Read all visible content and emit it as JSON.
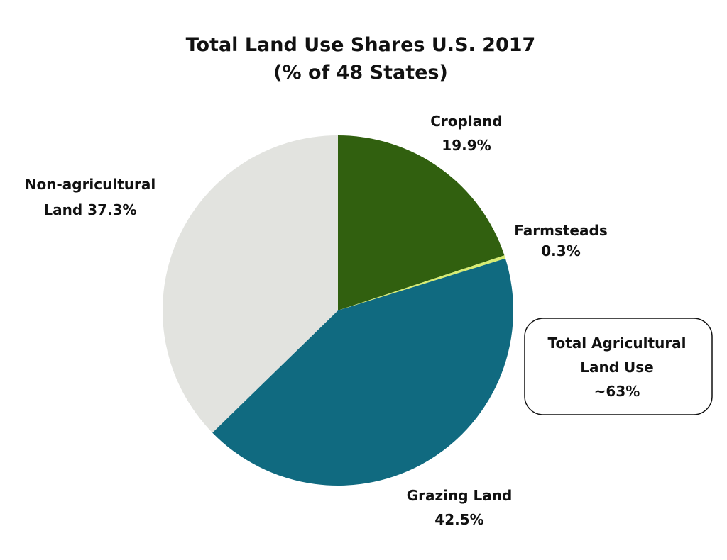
{
  "chart_data": {
    "type": "pie",
    "title": "Total Land Use Shares U.S. 2017",
    "subtitle": "(% of 48 States)",
    "slices": [
      {
        "label_lines": [
          "Cropland",
          "19.9%"
        ],
        "category": "Cropland",
        "value": 19.9,
        "color": "#31600f"
      },
      {
        "label_lines": [
          "Farmsteads",
          "0.3%"
        ],
        "category": "Farmsteads",
        "value": 0.3,
        "color": "#d7ec72"
      },
      {
        "label_lines": [
          "Grazing Land",
          "42.5%"
        ],
        "category": "Grazing Land",
        "value": 42.5,
        "color": "#106a80"
      },
      {
        "label_lines": [
          "Non-agricultural",
          "Land 37.3%"
        ],
        "category": "Non-agricultural Land",
        "value": 37.3,
        "color": "#e2e3df"
      }
    ],
    "callout_lines": [
      "Total Agricultural",
      "Land Use",
      "~63%"
    ]
  }
}
